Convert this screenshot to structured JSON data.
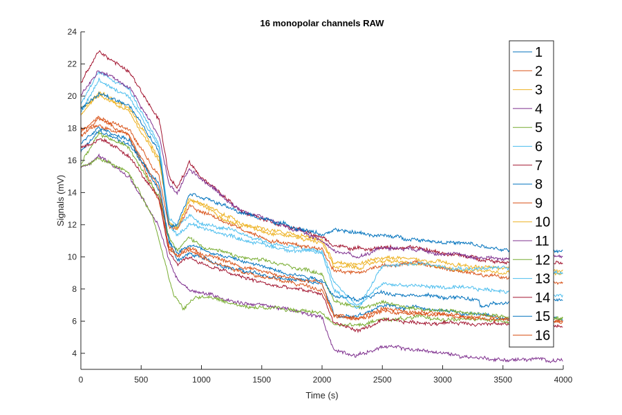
{
  "chart_data": {
    "type": "line",
    "title": "16 monopolar channels RAW",
    "xlabel": "Time (s)",
    "ylabel": "Signals (mV)",
    "xlim": [
      0,
      4000
    ],
    "ylim": [
      3,
      24
    ],
    "xticks": [
      0,
      500,
      1000,
      1500,
      2000,
      2500,
      3000,
      3500,
      4000
    ],
    "yticks": [
      4,
      6,
      8,
      10,
      12,
      14,
      16,
      18,
      20,
      22,
      24
    ],
    "grid": false,
    "legend_position": "top-right",
    "series": [
      {
        "name": "1",
        "color": "#0072BD",
        "points": [
          [
            0,
            16.5
          ],
          [
            150,
            17.8
          ],
          [
            400,
            17
          ],
          [
            650,
            14.5
          ],
          [
            730,
            11
          ],
          [
            800,
            9.8
          ],
          [
            900,
            10.2
          ],
          [
            1000,
            9.9
          ],
          [
            1300,
            9.2
          ],
          [
            1600,
            8.7
          ],
          [
            2000,
            8.3
          ],
          [
            2100,
            6.3
          ],
          [
            2300,
            6.4
          ],
          [
            2500,
            7.0
          ],
          [
            2800,
            6.8
          ],
          [
            3200,
            6.5
          ],
          [
            3500,
            6.2
          ],
          [
            4000,
            6.1
          ]
        ]
      },
      {
        "name": "2",
        "color": "#D95319",
        "points": [
          [
            0,
            17.5
          ],
          [
            150,
            18.5
          ],
          [
            400,
            17.5
          ],
          [
            650,
            13.5
          ],
          [
            730,
            10.7
          ],
          [
            800,
            10
          ],
          [
            900,
            10.6
          ],
          [
            1000,
            10.2
          ],
          [
            1300,
            9.5
          ],
          [
            1600,
            8.9
          ],
          [
            2000,
            8.4
          ],
          [
            2100,
            6.3
          ],
          [
            2300,
            6.2
          ],
          [
            2500,
            6.8
          ],
          [
            2800,
            6.5
          ],
          [
            3200,
            6.3
          ],
          [
            3500,
            6.1
          ],
          [
            4000,
            5.9
          ]
        ]
      },
      {
        "name": "3",
        "color": "#EDB120",
        "points": [
          [
            0,
            19.3
          ],
          [
            150,
            20
          ],
          [
            400,
            19
          ],
          [
            650,
            16
          ],
          [
            730,
            12.2
          ],
          [
            800,
            11.8
          ],
          [
            900,
            13.5
          ],
          [
            1000,
            13.2
          ],
          [
            1300,
            12.0
          ],
          [
            1600,
            11.5
          ],
          [
            2000,
            10.9
          ],
          [
            2100,
            9.4
          ],
          [
            2300,
            9.3
          ],
          [
            2500,
            9.8
          ],
          [
            2800,
            9.5
          ],
          [
            3200,
            9.2
          ],
          [
            3500,
            9.1
          ],
          [
            4000,
            8.9
          ]
        ]
      },
      {
        "name": "4",
        "color": "#7E2F8E",
        "points": [
          [
            0,
            15.5
          ],
          [
            150,
            16.3
          ],
          [
            400,
            15
          ],
          [
            650,
            11.8
          ],
          [
            730,
            9.8
          ],
          [
            800,
            8.6
          ],
          [
            900,
            8.0
          ],
          [
            1000,
            7.8
          ],
          [
            1300,
            7.2
          ],
          [
            1600,
            6.9
          ],
          [
            2000,
            6.2
          ],
          [
            2100,
            4.2
          ],
          [
            2300,
            3.9
          ],
          [
            2500,
            4.4
          ],
          [
            2800,
            4.2
          ],
          [
            3200,
            3.8
          ],
          [
            3500,
            3.6
          ],
          [
            4000,
            3.6
          ]
        ]
      },
      {
        "name": "5",
        "color": "#77AC30",
        "points": [
          [
            0,
            15.8
          ],
          [
            150,
            17.6
          ],
          [
            400,
            16.8
          ],
          [
            650,
            13.8
          ],
          [
            730,
            11.3
          ],
          [
            800,
            10.4
          ],
          [
            900,
            11.2
          ],
          [
            1000,
            10.7
          ],
          [
            1300,
            10.0
          ],
          [
            1600,
            9.6
          ],
          [
            2000,
            9.0
          ],
          [
            2100,
            7.2
          ],
          [
            2300,
            6.9
          ],
          [
            2500,
            7.1
          ],
          [
            2800,
            6.8
          ],
          [
            3200,
            6.5
          ],
          [
            3500,
            6.3
          ],
          [
            4000,
            6.2
          ]
        ]
      },
      {
        "name": "6",
        "color": "#4DBEEE",
        "points": [
          [
            0,
            19.5
          ],
          [
            150,
            21.5
          ],
          [
            400,
            20.5
          ],
          [
            650,
            17.0
          ],
          [
            730,
            12.5
          ],
          [
            800,
            11.8
          ],
          [
            900,
            12.5
          ],
          [
            1000,
            12.1
          ],
          [
            1300,
            11.5
          ],
          [
            1600,
            10.8
          ],
          [
            2000,
            10.3
          ],
          [
            2100,
            8.4
          ],
          [
            2300,
            6.9
          ],
          [
            2500,
            8.3
          ],
          [
            2800,
            8.2
          ],
          [
            3200,
            8.0
          ],
          [
            3500,
            7.9
          ],
          [
            4000,
            7.6
          ]
        ]
      },
      {
        "name": "7",
        "color": "#A2142F",
        "points": [
          [
            0,
            20.8
          ],
          [
            150,
            22.8
          ],
          [
            400,
            21.5
          ],
          [
            650,
            18.5
          ],
          [
            730,
            15.0
          ],
          [
            800,
            14.2
          ],
          [
            900,
            15.9
          ],
          [
            1000,
            15.0
          ],
          [
            1300,
            13.0
          ],
          [
            1600,
            12.2
          ],
          [
            2000,
            11.2
          ],
          [
            2100,
            10.7
          ],
          [
            2300,
            10.5
          ],
          [
            2500,
            10.6
          ],
          [
            2800,
            10.5
          ],
          [
            3200,
            10.0
          ],
          [
            3500,
            9.7
          ],
          [
            4000,
            9.6
          ]
        ]
      },
      {
        "name": "8",
        "color": "#0072BD",
        "points": [
          [
            0,
            17.0
          ],
          [
            150,
            18.0
          ],
          [
            400,
            17.3
          ],
          [
            650,
            14.0
          ],
          [
            730,
            11.0
          ],
          [
            800,
            10.3
          ],
          [
            900,
            10.8
          ],
          [
            1000,
            10.5
          ],
          [
            1300,
            9.8
          ],
          [
            1600,
            9.2
          ],
          [
            2000,
            8.6
          ],
          [
            2100,
            7.6
          ],
          [
            2300,
            7.3
          ],
          [
            2500,
            7.8
          ],
          [
            2800,
            7.6
          ],
          [
            3200,
            7.4
          ],
          [
            3300,
            7.3
          ],
          [
            3310,
            6.9
          ],
          [
            3500,
            7.1
          ],
          [
            4000,
            7.4
          ]
        ]
      },
      {
        "name": "9",
        "color": "#D95319",
        "points": [
          [
            0,
            17.8
          ],
          [
            150,
            18.7
          ],
          [
            400,
            17.9
          ],
          [
            650,
            15.0
          ],
          [
            730,
            11.8
          ],
          [
            800,
            11.7
          ],
          [
            900,
            13.2
          ],
          [
            1000,
            12.8
          ],
          [
            1300,
            11.8
          ],
          [
            1600,
            11.0
          ],
          [
            2000,
            10.5
          ],
          [
            2100,
            9.2
          ],
          [
            2300,
            9.0
          ],
          [
            2500,
            9.5
          ],
          [
            2800,
            9.6
          ],
          [
            3200,
            9.0
          ],
          [
            3500,
            8.7
          ],
          [
            4000,
            8.3
          ]
        ]
      },
      {
        "name": "10",
        "color": "#EDB120",
        "points": [
          [
            0,
            18.8
          ],
          [
            150,
            20.2
          ],
          [
            400,
            19.3
          ],
          [
            650,
            16.2
          ],
          [
            730,
            12.0
          ],
          [
            800,
            11.9
          ],
          [
            900,
            13.6
          ],
          [
            1000,
            13.3
          ],
          [
            1300,
            12.2
          ],
          [
            1600,
            11.6
          ],
          [
            2000,
            11.0
          ],
          [
            2100,
            9.6
          ],
          [
            2300,
            9.5
          ],
          [
            2500,
            10.0
          ],
          [
            2800,
            9.8
          ],
          [
            3200,
            9.4
          ],
          [
            3500,
            9.3
          ],
          [
            4000,
            9.1
          ]
        ]
      },
      {
        "name": "11",
        "color": "#7E2F8E",
        "points": [
          [
            0,
            20.0
          ],
          [
            150,
            21.6
          ],
          [
            400,
            20.6
          ],
          [
            650,
            17.5
          ],
          [
            730,
            14.5
          ],
          [
            800,
            14.0
          ],
          [
            900,
            15.5
          ],
          [
            1000,
            14.9
          ],
          [
            1300,
            13.0
          ],
          [
            1600,
            12.2
          ],
          [
            2000,
            11.0
          ],
          [
            2100,
            10.4
          ],
          [
            2300,
            10.0
          ],
          [
            2500,
            10.6
          ],
          [
            2800,
            10.5
          ],
          [
            3200,
            10.0
          ],
          [
            3500,
            9.9
          ],
          [
            4000,
            10.1
          ]
        ]
      },
      {
        "name": "12",
        "color": "#77AC30",
        "points": [
          [
            0,
            15.6
          ],
          [
            150,
            16.1
          ],
          [
            400,
            15.2
          ],
          [
            600,
            12.5
          ],
          [
            700,
            9.6
          ],
          [
            760,
            7.8
          ],
          [
            850,
            6.7
          ],
          [
            950,
            7.5
          ],
          [
            1050,
            7.5
          ],
          [
            1300,
            7.0
          ],
          [
            1600,
            6.8
          ],
          [
            2000,
            6.5
          ],
          [
            2100,
            5.9
          ],
          [
            2300,
            5.7
          ],
          [
            2500,
            6.1
          ],
          [
            2800,
            6.2
          ],
          [
            3200,
            6.1
          ],
          [
            3500,
            6.0
          ],
          [
            4000,
            6.1
          ]
        ]
      },
      {
        "name": "13",
        "color": "#4DBEEE",
        "points": [
          [
            0,
            19.0
          ],
          [
            150,
            21.0
          ],
          [
            400,
            20.0
          ],
          [
            650,
            16.8
          ],
          [
            730,
            12.0
          ],
          [
            800,
            11.3
          ],
          [
            900,
            12.1
          ],
          [
            1000,
            11.8
          ],
          [
            1300,
            11.2
          ],
          [
            1600,
            10.6
          ],
          [
            2000,
            10.2
          ],
          [
            2100,
            8.0
          ],
          [
            2300,
            6.8
          ],
          [
            2500,
            9.4
          ],
          [
            2800,
            9.6
          ],
          [
            3200,
            9.3
          ],
          [
            3500,
            9.3
          ],
          [
            4000,
            9.0
          ]
        ]
      },
      {
        "name": "14",
        "color": "#A2142F",
        "points": [
          [
            0,
            16.8
          ],
          [
            150,
            17.3
          ],
          [
            400,
            16.3
          ],
          [
            650,
            13.5
          ],
          [
            730,
            10.3
          ],
          [
            800,
            9.6
          ],
          [
            900,
            10.0
          ],
          [
            1000,
            9.6
          ],
          [
            1300,
            8.8
          ],
          [
            1600,
            8.2
          ],
          [
            2000,
            7.7
          ],
          [
            2100,
            5.9
          ],
          [
            2300,
            5.4
          ],
          [
            2500,
            6.0
          ],
          [
            2800,
            5.9
          ],
          [
            3200,
            5.9
          ],
          [
            3500,
            5.8
          ],
          [
            4000,
            5.7
          ]
        ]
      },
      {
        "name": "15",
        "color": "#0072BD",
        "points": [
          [
            0,
            19.2
          ],
          [
            150,
            20.1
          ],
          [
            400,
            19.5
          ],
          [
            650,
            16.5
          ],
          [
            730,
            12.0
          ],
          [
            800,
            12.1
          ],
          [
            900,
            14.0
          ],
          [
            1000,
            13.8
          ],
          [
            1300,
            12.8
          ],
          [
            1600,
            12.2
          ],
          [
            2000,
            11.4
          ],
          [
            2100,
            11.6
          ],
          [
            2300,
            11.5
          ],
          [
            2500,
            11.3
          ],
          [
            2800,
            11.1
          ],
          [
            3200,
            10.8
          ],
          [
            3500,
            10.4
          ],
          [
            4000,
            10.3
          ]
        ]
      },
      {
        "name": "16",
        "color": "#D95319",
        "points": [
          [
            0,
            17.9
          ],
          [
            150,
            18.2
          ],
          [
            400,
            17.6
          ],
          [
            650,
            14.2
          ],
          [
            730,
            10.5
          ],
          [
            800,
            10.0
          ],
          [
            900,
            10.4
          ],
          [
            1000,
            10.0
          ],
          [
            1300,
            9.2
          ],
          [
            1600,
            8.6
          ],
          [
            2000,
            8.0
          ],
          [
            2100,
            6.4
          ],
          [
            2300,
            6.1
          ],
          [
            2500,
            6.6
          ],
          [
            2800,
            6.4
          ],
          [
            3200,
            6.3
          ],
          [
            3500,
            6.1
          ],
          [
            4000,
            6.0
          ]
        ]
      }
    ]
  }
}
